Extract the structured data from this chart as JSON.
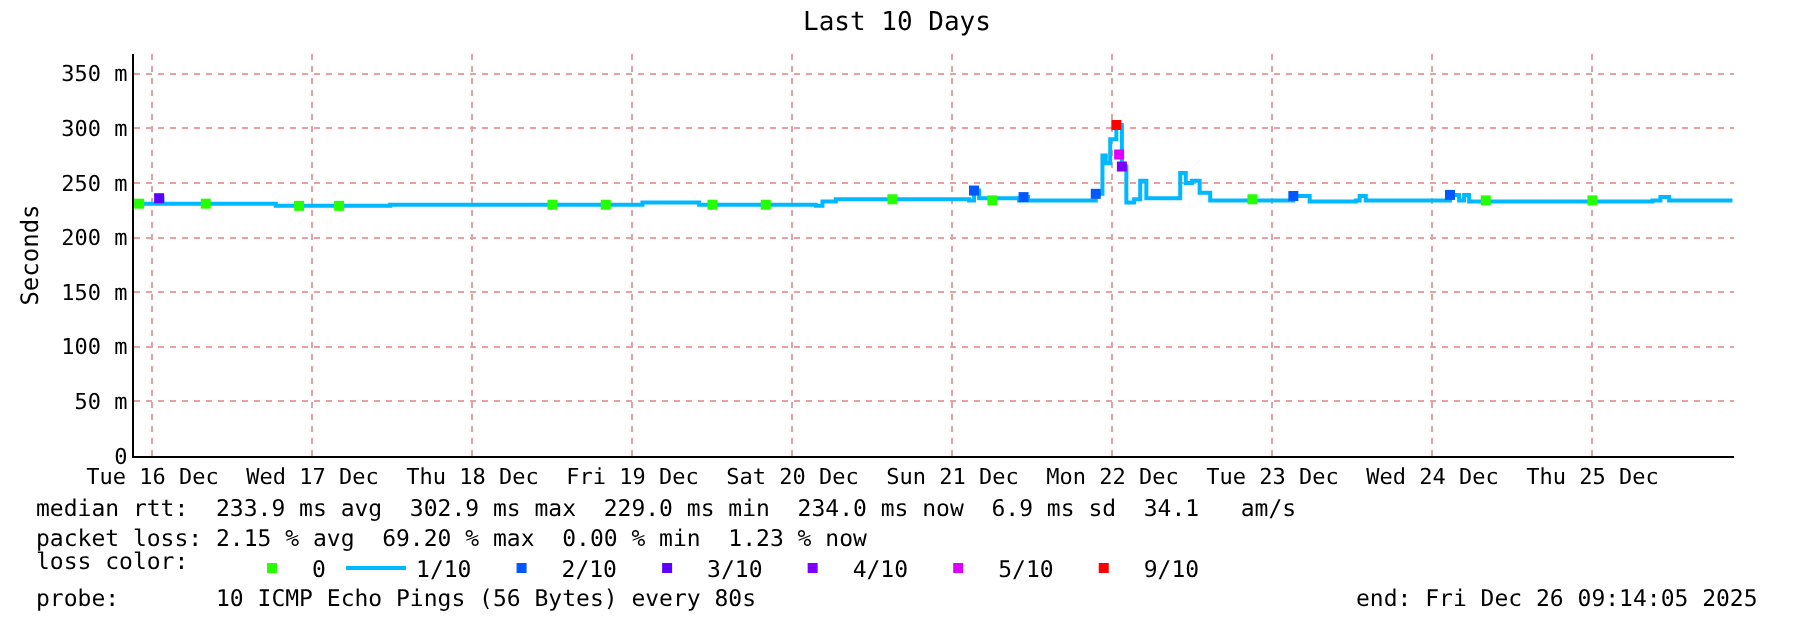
{
  "chart_data": {
    "type": "step",
    "title": "Last 10 Days",
    "ylabel": "Seconds",
    "x": [
      "2025-12-16T09:14",
      "2025-12-16T12:30",
      "2025-12-16T13:00",
      "2025-12-16T13:30",
      "2025-12-17T06:00",
      "2025-12-17T06:30",
      "2025-12-17T23:40",
      "2025-12-19T12:30",
      "2025-12-19T13:30",
      "2025-12-19T21:00",
      "2025-12-19T22:00",
      "2025-12-20T15:30",
      "2025-12-20T16:30",
      "2025-12-20T18:30",
      "2025-12-21T14:30",
      "2025-12-21T15:14",
      "2025-12-21T16:00",
      "2025-12-21T22:00",
      "2025-12-21T22:40",
      "2025-12-21T23:20",
      "2025-12-22T08:38",
      "2025-12-22T09:30",
      "2025-12-22T10:30",
      "2025-12-22T11:00",
      "2025-12-22T11:40",
      "2025-12-22T12:35",
      "2025-12-22T13:25",
      "2025-12-22T14:05",
      "2025-12-22T15:15",
      "2025-12-22T16:10",
      "2025-12-22T17:05",
      "2025-12-22T22:10",
      "2025-12-22T23:00",
      "2025-12-22T23:55",
      "2025-12-23T01:05",
      "2025-12-23T02:40",
      "2025-12-23T14:30",
      "2025-12-23T15:08",
      "2025-12-23T17:35",
      "2025-12-24T00:30",
      "2025-12-24T01:05",
      "2025-12-24T02:00",
      "2025-12-24T14:00",
      "2025-12-24T14:38",
      "2025-12-24T16:00",
      "2025-12-24T16:45",
      "2025-12-24T17:30",
      "2025-12-25T21:00",
      "2025-12-25T22:12",
      "2025-12-25T23:30",
      "2025-12-26T09:00"
    ],
    "series": [
      {
        "name": "0",
        "type": "scatter",
        "color": "#26ff00",
        "x": [
          "2025-12-16T10:00",
          "2025-12-16T20:00",
          "2025-12-17T10:00",
          "2025-12-17T16:00",
          "2025-12-19T00:00",
          "2025-12-19T08:00",
          "2025-12-20T00:00",
          "2025-12-20T08:00",
          "2025-12-21T03:00",
          "2025-12-21T18:00",
          "2025-12-23T09:00",
          "2025-12-24T20:00",
          "2025-12-25T12:00"
        ],
        "values": [
          231,
          231,
          229,
          229,
          230,
          230,
          230,
          230,
          235,
          234,
          235,
          234,
          234
        ]
      },
      {
        "name": "1/10",
        "color": "#00b8ff",
        "values": [
          231,
          231,
          236,
          231,
          231,
          229,
          230,
          230,
          232,
          232,
          230,
          229,
          233,
          235,
          234,
          243,
          236,
          234,
          237,
          234,
          234,
          240,
          275,
          268,
          290,
          303,
          265,
          232,
          235,
          252,
          236,
          259,
          250,
          252,
          241,
          234,
          234,
          238,
          233,
          234,
          238,
          234,
          234,
          239,
          234,
          239,
          233,
          234,
          237,
          234,
          234
        ]
      },
      {
        "name": "2/10",
        "type": "scatter",
        "color": "#0059ff",
        "x": [
          "2025-12-21T15:14",
          "2025-12-21T22:40",
          "2025-12-22T09:30",
          "2025-12-23T15:08",
          "2025-12-24T14:38"
        ],
        "values": [
          243,
          237,
          240,
          238,
          239
        ]
      },
      {
        "name": "3/10",
        "type": "scatter",
        "color": "#5e00ff",
        "x": [
          "2025-12-16T13:00"
        ],
        "values": [
          236
        ]
      },
      {
        "name": "4/10",
        "type": "scatter",
        "color": "#7e00ff",
        "x": [
          "2025-12-22T13:25"
        ],
        "values": [
          265
        ]
      },
      {
        "name": "5/10",
        "type": "scatter",
        "color": "#dd00ff",
        "x": [
          "2025-12-22T13:00"
        ],
        "values": [
          276
        ]
      },
      {
        "name": "9/10",
        "type": "scatter",
        "color": "#ff0000",
        "x": [
          "2025-12-22T12:35"
        ],
        "values": [
          303
        ]
      }
    ],
    "legend_title": "loss color:",
    "legend": "bottom",
    "xlim": [
      "2025-12-16T09:14",
      "2025-12-26T09:14"
    ],
    "xticks": [
      {
        "value": "2025-12-16T12:00",
        "label": "Tue 16 Dec"
      },
      {
        "value": "2025-12-17T12:00",
        "label": "Wed 17 Dec"
      },
      {
        "value": "2025-12-18T12:00",
        "label": "Thu 18 Dec"
      },
      {
        "value": "2025-12-19T12:00",
        "label": "Fri 19 Dec"
      },
      {
        "value": "2025-12-20T12:00",
        "label": "Sat 20 Dec"
      },
      {
        "value": "2025-12-21T12:00",
        "label": "Sun 21 Dec"
      },
      {
        "value": "2025-12-22T12:00",
        "label": "Mon 22 Dec"
      },
      {
        "value": "2025-12-23T12:00",
        "label": "Tue 23 Dec"
      },
      {
        "value": "2025-12-24T12:00",
        "label": "Wed 24 Dec"
      },
      {
        "value": "2025-12-25T12:00",
        "label": "Thu 25 Dec"
      }
    ],
    "ylim": [
      0,
      368
    ],
    "yticks": [
      0,
      {
        "value": 50,
        "label": "50 m"
      },
      {
        "value": 100,
        "label": "100 m"
      },
      {
        "value": 150,
        "label": "150 m"
      },
      {
        "value": 200,
        "label": "200 m"
      },
      {
        "value": 250,
        "label": "250 m"
      },
      {
        "value": 300,
        "label": "300 m"
      },
      {
        "value": 350,
        "label": "350 m"
      }
    ],
    "grid": true,
    "annotations": [
      "median rtt:  233.9 ms avg  302.9 ms max  229.0 ms min  234.0 ms now  6.9 ms sd  34.1   am/s",
      "packet loss: 2.15 % avg  69.20 % max  0.00 % min  1.23 % now",
      "probe:       10 ICMP Echo Pings (56 Bytes) every 80s",
      "end: Fri Dec 26 09:14:05 2025"
    ]
  }
}
